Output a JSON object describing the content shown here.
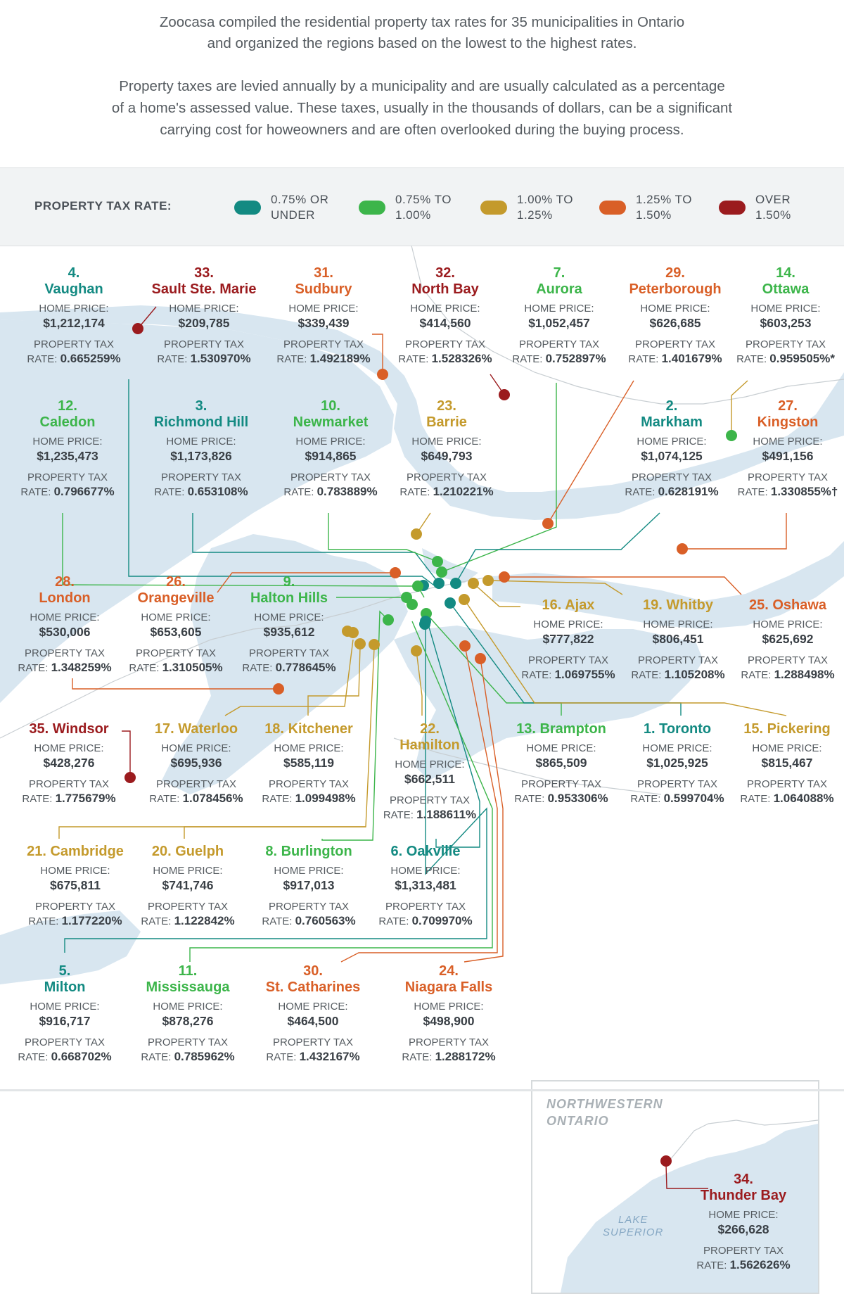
{
  "intro": {
    "line1": "Zoocasa compiled the residential property tax rates for 35 municipalities in Ontario",
    "line2": "and organized the regions based on the lowest to the highest rates.",
    "line3": "Property taxes are levied annually by a municipality and are usually calculated as a percentage",
    "line4": "of a home's assessed value. These taxes, usually in the thousands of dollars, can be a significant",
    "line5": "carrying cost for howeowners and are often overlooked during the buying process."
  },
  "legend": {
    "title": "PROPERTY TAX RATE:",
    "items": [
      {
        "label": "0.75% OR\nUNDER",
        "color": "#138a82"
      },
      {
        "label": "0.75% TO\n1.00%",
        "color": "#3cb54a"
      },
      {
        "label": "1.00% TO\n1.25%",
        "color": "#c49a2c"
      },
      {
        "label": "1.25% TO\n1.50%",
        "color": "#d95f27"
      },
      {
        "label": "OVER\n1.50%",
        "color": "#9b1b1e"
      }
    ]
  },
  "labels": {
    "home_price": "HOME PRICE:",
    "property_tax": "PROPERTY TAX",
    "rate": "RATE: "
  },
  "cities": [
    {
      "rank": "4.",
      "name": "Vaughan",
      "price": "$1,212,174",
      "rate": "0.665259%",
      "color": "#138a82"
    },
    {
      "rank": "33.",
      "name": "Sault Ste. Marie",
      "price": "$209,785",
      "rate": "1.530970%",
      "color": "#9b1b1e"
    },
    {
      "rank": "31.",
      "name": "Sudbury",
      "price": "$339,439",
      "rate": "1.492189%",
      "color": "#d95f27"
    },
    {
      "rank": "32.",
      "name": "North Bay",
      "price": "$414,560",
      "rate": "1.528326%",
      "color": "#9b1b1e"
    },
    {
      "rank": "7.",
      "name": "Aurora",
      "price": "$1,052,457",
      "rate": "0.752897%",
      "color": "#3cb54a"
    },
    {
      "rank": "29.",
      "name": "Peterborough",
      "price": "$626,685",
      "rate": "1.401679%",
      "color": "#d95f27"
    },
    {
      "rank": "14.",
      "name": "Ottawa",
      "price": "$603,253",
      "rate": "0.959505%*",
      "color": "#3cb54a"
    },
    {
      "rank": "12.",
      "name": "Caledon",
      "price": "$1,235,473",
      "rate": "0.796677%",
      "color": "#3cb54a"
    },
    {
      "rank": "3.",
      "name": "Richmond Hill",
      "price": "$1,173,826",
      "rate": "0.653108%",
      "color": "#138a82"
    },
    {
      "rank": "10.",
      "name": "Newmarket",
      "price": "$914,865",
      "rate": "0.783889%",
      "color": "#3cb54a"
    },
    {
      "rank": "23.",
      "name": "Barrie",
      "price": "$649,793",
      "rate": "1.210221%",
      "color": "#c49a2c"
    },
    {
      "rank": "2.",
      "name": "Markham",
      "price": "$1,074,125",
      "rate": "0.628191%",
      "color": "#138a82"
    },
    {
      "rank": "27.",
      "name": "Kingston",
      "price": "$491,156",
      "rate": "1.330855%†",
      "color": "#d95f27"
    },
    {
      "rank": "28.",
      "name": "London",
      "price": "$530,006",
      "rate": "1.348259%",
      "color": "#d95f27"
    },
    {
      "rank": "26.",
      "name": "Orangeville",
      "price": "$653,605",
      "rate": "1.310505%",
      "color": "#d95f27"
    },
    {
      "rank": "9.",
      "name": "Halton Hills",
      "price": "$935,612",
      "rate": "0.778645%",
      "color": "#3cb54a"
    },
    {
      "rank": "16.",
      "name": "Ajax",
      "price": "$777,822",
      "rate": "1.069755%",
      "color": "#c49a2c"
    },
    {
      "rank": "19.",
      "name": "Whitby",
      "price": "$806,451",
      "rate": "1.105208%",
      "color": "#c49a2c"
    },
    {
      "rank": "25.",
      "name": "Oshawa",
      "price": "$625,692",
      "rate": "1.288498%",
      "color": "#d95f27"
    },
    {
      "rank": "35.",
      "name": "Windsor",
      "price": "$428,276",
      "rate": "1.775679%",
      "color": "#9b1b1e"
    },
    {
      "rank": "17.",
      "name": "Waterloo",
      "price": "$695,936",
      "rate": "1.078456%",
      "color": "#c49a2c"
    },
    {
      "rank": "18.",
      "name": "Kitchener",
      "price": "$585,119",
      "rate": "1.099498%",
      "color": "#c49a2c"
    },
    {
      "rank": "22.",
      "name": "Hamilton",
      "price": "$662,511",
      "rate": "1.188611%",
      "color": "#c49a2c"
    },
    {
      "rank": "13.",
      "name": "Brampton",
      "price": "$865,509",
      "rate": "0.953306%",
      "color": "#3cb54a"
    },
    {
      "rank": "1.",
      "name": "Toronto",
      "price": "$1,025,925",
      "rate": "0.599704%",
      "color": "#138a82"
    },
    {
      "rank": "15.",
      "name": "Pickering",
      "price": "$815,467",
      "rate": "1.064088%",
      "color": "#c49a2c"
    },
    {
      "rank": "21.",
      "name": "Cambridge",
      "price": "$675,811",
      "rate": "1.177220%",
      "color": "#c49a2c"
    },
    {
      "rank": "20.",
      "name": "Guelph",
      "price": "$741,746",
      "rate": "1.122842%",
      "color": "#c49a2c"
    },
    {
      "rank": "8.",
      "name": "Burlington",
      "price": "$917,013",
      "rate": "0.760563%",
      "color": "#3cb54a"
    },
    {
      "rank": "6.",
      "name": "Oakville",
      "price": "$1,313,481",
      "rate": "0.709970%",
      "color": "#138a82"
    },
    {
      "rank": "5.",
      "name": "Milton",
      "price": "$916,717",
      "rate": "0.668702%",
      "color": "#138a82"
    },
    {
      "rank": "11.",
      "name": "Mississauga",
      "price": "$878,276",
      "rate": "0.785962%",
      "color": "#3cb54a"
    },
    {
      "rank": "30.",
      "name": "St. Catharines",
      "price": "$464,500",
      "rate": "1.432167%",
      "color": "#d95f27"
    },
    {
      "rank": "24.",
      "name": "Niagara Falls",
      "price": "$498,900",
      "rate": "1.288172%",
      "color": "#d95f27"
    }
  ],
  "inset": {
    "title": "NORTHWESTERN\nONTARIO",
    "lake": "LAKE\nSUPERIOR",
    "city": {
      "rank": "34.",
      "name": "Thunder Bay",
      "price": "$266,628",
      "rate": "1.562626%",
      "color": "#9b1b1e"
    }
  }
}
